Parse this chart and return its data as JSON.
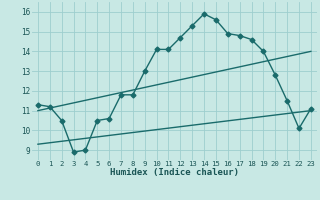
{
  "xlabel": "Humidex (Indice chaleur)",
  "ylabel": "",
  "xlim": [
    -0.5,
    23.5
  ],
  "ylim": [
    8.5,
    16.5
  ],
  "xticks": [
    0,
    1,
    2,
    3,
    4,
    5,
    6,
    7,
    8,
    9,
    10,
    11,
    12,
    13,
    14,
    15,
    16,
    17,
    18,
    19,
    20,
    21,
    22,
    23
  ],
  "yticks": [
    9,
    10,
    11,
    12,
    13,
    14,
    15,
    16
  ],
  "background_color": "#c8e8e4",
  "grid_color": "#9ecece",
  "line_color": "#1a6b6b",
  "line1_x": [
    0,
    1,
    2,
    3,
    4,
    5,
    6,
    7,
    8,
    9,
    10,
    11,
    12,
    13,
    14,
    15,
    16,
    17,
    18,
    19,
    20,
    21,
    22,
    23
  ],
  "line1_y": [
    11.3,
    11.2,
    10.5,
    8.9,
    9.0,
    10.5,
    10.6,
    11.8,
    11.8,
    13.0,
    14.1,
    14.1,
    14.7,
    15.3,
    15.9,
    15.6,
    14.9,
    14.8,
    14.6,
    14.0,
    12.8,
    11.5,
    10.1,
    11.1
  ],
  "line2_x": [
    0,
    23
  ],
  "line2_y": [
    11.0,
    14.0
  ],
  "line3_x": [
    0,
    23
  ],
  "line3_y": [
    9.3,
    11.0
  ]
}
